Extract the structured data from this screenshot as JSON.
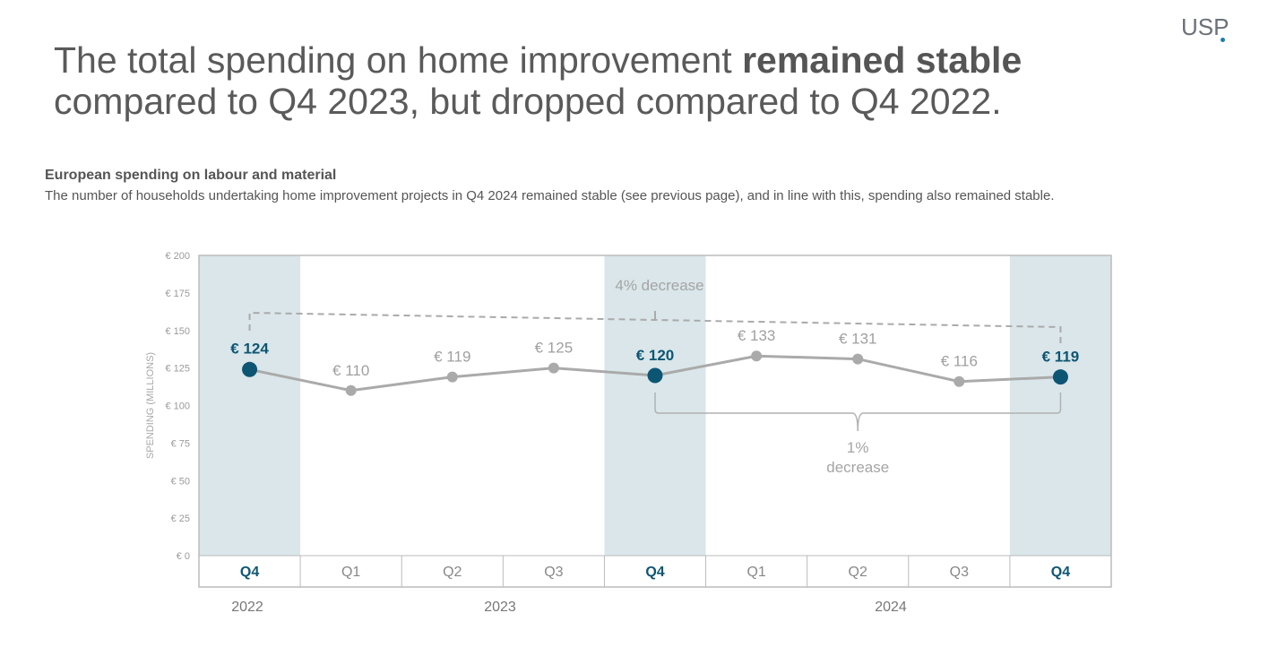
{
  "logo": {
    "text": "USP"
  },
  "headline": {
    "part1": "The total spending on home improvement ",
    "bold": "remained stable",
    "part2": "compared to Q4 2023, but dropped compared to Q4 2022."
  },
  "subtitle": "European spending on labour and material",
  "description": "The number of households undertaking home improvement projects in Q4 2024 remained stable (see previous page), and in line with this, spending also remained stable.",
  "colors": {
    "highlight_band": "#dae6ea",
    "highlight_marker": "#0d5673",
    "line": "#aaaaaa",
    "frame": "#bbbbbb"
  },
  "chart_data": {
    "type": "line",
    "ylabel": "SPENDING (MILLIONS)",
    "ylim": [
      0,
      200
    ],
    "yticks": [
      "€ 0",
      "€ 25",
      "€ 50",
      "€ 75",
      "€ 100",
      "€ 125",
      "€ 150",
      "€ 175",
      "€ 200"
    ],
    "ytick_values": [
      0,
      25,
      50,
      75,
      100,
      125,
      150,
      175,
      200
    ],
    "categories": [
      "Q4",
      "Q1",
      "Q2",
      "Q3",
      "Q4",
      "Q1",
      "Q2",
      "Q3",
      "Q4"
    ],
    "years": [
      "2022",
      "2023",
      "2024"
    ],
    "values": [
      124,
      110,
      119,
      125,
      120,
      133,
      131,
      116,
      119
    ],
    "value_labels": [
      "€ 124",
      "€ 110",
      "€ 119",
      "€ 125",
      "€ 120",
      "€ 133",
      "€ 131",
      "€ 116",
      "€ 119"
    ],
    "highlighted_indices": [
      0,
      4,
      8
    ],
    "annotations": [
      {
        "text": "4% decrease",
        "from_index": 0,
        "to_index": 8
      },
      {
        "text": "1%",
        "text2": "decrease",
        "from_index": 4,
        "to_index": 8
      }
    ],
    "grid": false
  }
}
